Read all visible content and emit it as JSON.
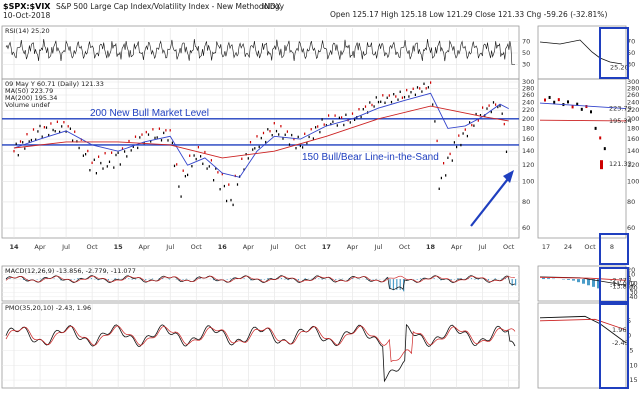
{
  "header": {
    "symbol": "$SPX:$VIX",
    "name": "S&P 500 Large Cap Index/Volatility Index - New Methodology",
    "exchange": "INDX",
    "date": "10-Oct-2018",
    "ohlc": "Open 125.17  High 125.18  Low 121.29  Close 121.33  Chg -59.26 (-32.81%)"
  },
  "indicators": {
    "rsi_label": "RSI(14) 25.20",
    "price_label": "09 May Y 60.71  (Daily) 121.33",
    "ma50_label": "MA(50) 223.79",
    "ma200_label": "MA(200) 195.34",
    "volume_label": "Volume undef",
    "macd_label": "MACD(12,26,9) -13.856, -2.779, -11.077",
    "pmo_label": "PMO(35,20,10) -2.43, 1.96"
  },
  "annotations": {
    "bull_market": "200 New Bull Market Level",
    "bear_line": "150 Bull/Bear Line-in-the-Sand"
  },
  "inset_x_ticks": [
    "17",
    "24",
    "Oct",
    "8"
  ],
  "right_labels": {
    "rsi": "25.20",
    "ma50": "223.79",
    "ma200": "195.34",
    "close": "121.33",
    "macd1": "-2.779",
    "macd2": "-11.077",
    "macd3": "-13.856",
    "pmo1": "1.96",
    "pmo2": "-2.43"
  },
  "colors": {
    "annotation_blue": "#1f3fbf",
    "ma50": "#3344cc",
    "ma200": "#cc2222",
    "price_up": "#000000",
    "price_down": "#cc0000",
    "hist": "#4a9cc8",
    "close_marker": "#cc0000"
  },
  "chart_data": [
    {
      "type": "line",
      "panel": "RSI(14)",
      "ylim": [
        10,
        90
      ],
      "y_ticks": [
        30,
        50,
        70
      ],
      "last_value": 25.2
    },
    {
      "type": "scatter",
      "panel": "price",
      "title": "$SPX:$VIX",
      "ylim": [
        55,
        300
      ],
      "y_ticks": [
        60,
        80,
        100,
        120,
        140,
        160,
        180,
        200,
        220,
        240,
        260,
        280,
        300
      ],
      "x_ticks": [
        "14",
        "Apr",
        "Jul",
        "Oct",
        "15",
        "Apr",
        "Jul",
        "Oct",
        "16",
        "Apr",
        "Jul",
        "Oct",
        "17",
        "Apr",
        "Jul",
        "Oct",
        "18",
        "Apr",
        "Jul",
        "Oct"
      ],
      "horizontal_lines": [
        200,
        150
      ],
      "series": [
        {
          "name": "$SPX:$VIX",
          "x": [
            "2014-01",
            "2014-04",
            "2014-07",
            "2014-10",
            "2015-01",
            "2015-04",
            "2015-07",
            "2015-08",
            "2015-10",
            "2016-01",
            "2016-02",
            "2016-04",
            "2016-07",
            "2016-10",
            "2017-01",
            "2017-04",
            "2017-07",
            "2017-10",
            "2018-01",
            "2018-02",
            "2018-04",
            "2018-07",
            "2018-09",
            "2018-10"
          ],
          "values": [
            140,
            175,
            185,
            120,
            130,
            165,
            170,
            90,
            140,
            100,
            80,
            140,
            180,
            150,
            195,
            200,
            245,
            260,
            290,
            100,
            150,
            215,
            240,
            121.33
          ]
        },
        {
          "name": "MA(50)",
          "x": [
            "2014-01",
            "2014-04",
            "2014-07",
            "2014-10",
            "2015-01",
            "2015-04",
            "2015-07",
            "2015-09",
            "2015-11",
            "2016-01",
            "2016-03",
            "2016-05",
            "2016-07",
            "2016-10",
            "2017-01",
            "2017-04",
            "2017-07",
            "2017-10",
            "2018-01",
            "2018-03",
            "2018-05",
            "2018-07",
            "2018-09",
            "2018-10"
          ],
          "values": [
            145,
            160,
            175,
            150,
            140,
            155,
            165,
            120,
            130,
            110,
            105,
            140,
            165,
            160,
            185,
            200,
            225,
            245,
            265,
            180,
            185,
            205,
            235,
            223.79
          ]
        },
        {
          "name": "MA(200)",
          "x": [
            "2014-01",
            "2014-07",
            "2015-01",
            "2015-07",
            "2016-01",
            "2016-07",
            "2017-01",
            "2017-07",
            "2018-01",
            "2018-07",
            "2018-10"
          ],
          "values": [
            145,
            155,
            155,
            150,
            130,
            140,
            165,
            200,
            230,
            205,
            195.34
          ]
        }
      ],
      "last_value": 121.33
    },
    {
      "type": "line",
      "panel": "MACD(12,26,9)",
      "ylim": [
        -45,
        25
      ],
      "y_ticks": [
        -40,
        -30,
        -20,
        -10,
        0,
        10,
        20
      ],
      "series": [
        {
          "name": "MACD",
          "last_value": -13.856
        },
        {
          "name": "Signal",
          "last_value": -2.779
        },
        {
          "name": "Histogram",
          "last_value": -11.077
        }
      ]
    },
    {
      "type": "line",
      "panel": "PMO(35,20,10)",
      "ylim": [
        -17,
        10
      ],
      "y_ticks": [
        -15,
        -10,
        -5,
        0,
        5
      ],
      "series": [
        {
          "name": "PMO",
          "last_value": -2.43
        },
        {
          "name": "Signal",
          "last_value": 1.96
        }
      ]
    }
  ]
}
